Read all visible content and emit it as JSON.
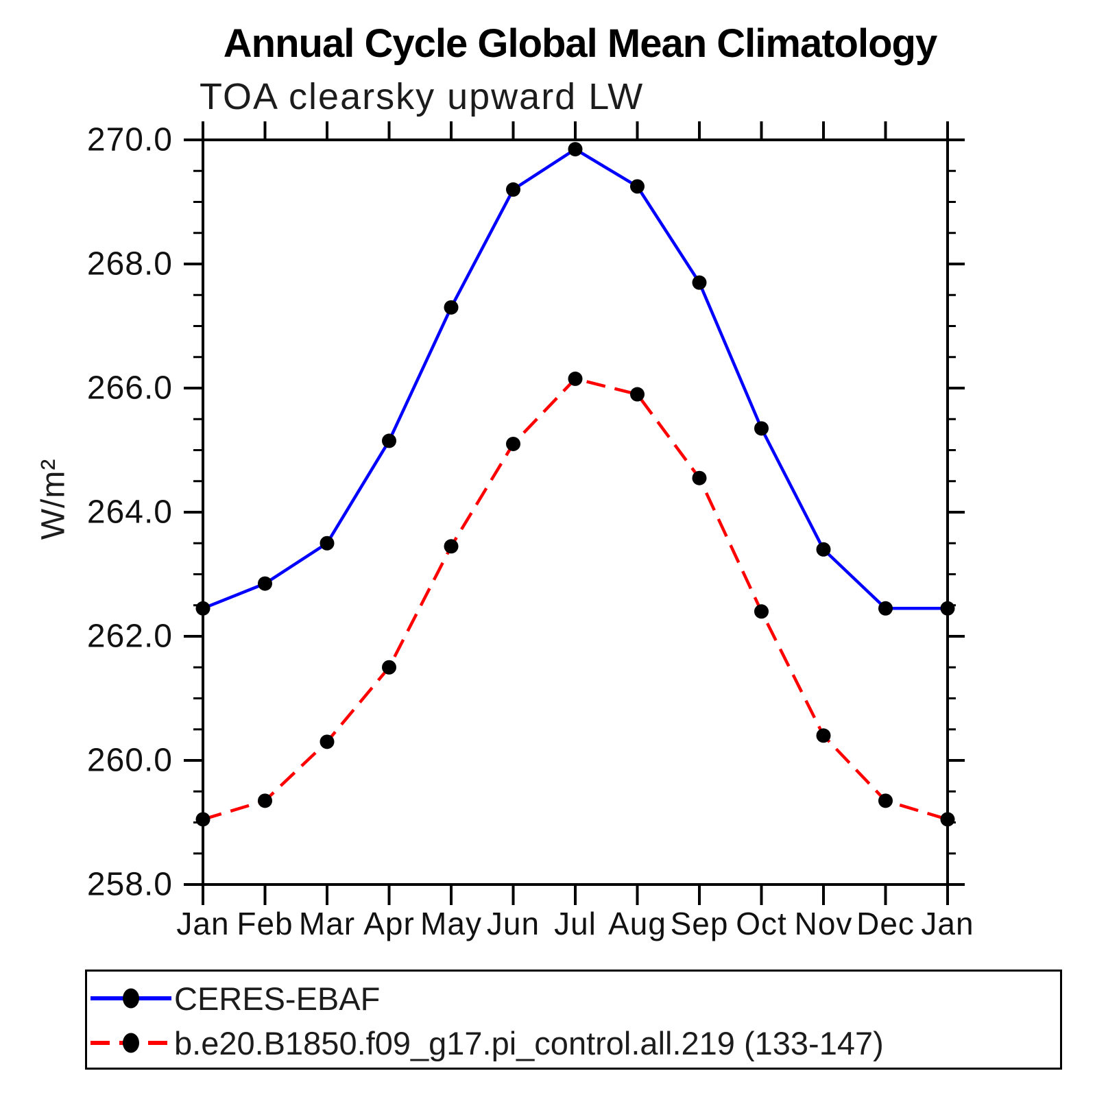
{
  "title": "Annual Cycle Global Mean Climatology",
  "chart_data": {
    "type": "line",
    "title": "Annual Cycle Global Mean Climatology",
    "subtitle": "TOA clearsky upward LW",
    "ylabel": "W/m²",
    "xlabel": "",
    "categories": [
      "Jan",
      "Feb",
      "Mar",
      "Apr",
      "May",
      "Jun",
      "Jul",
      "Aug",
      "Sep",
      "Oct",
      "Nov",
      "Dec",
      "Jan"
    ],
    "ylim": [
      258.0,
      270.0
    ],
    "ytick_major_step": 2.0,
    "ytick_minor_step": 0.5,
    "ytick_labels": [
      "258.0",
      "260.0",
      "262.0",
      "264.0",
      "266.0",
      "268.0",
      "270.0"
    ],
    "grid": false,
    "legend_position": "bottom-left-box",
    "series": [
      {
        "name": "CERES-EBAF",
        "line_style": "solid",
        "line_color": "#0000ff",
        "marker": "circle",
        "marker_color": "#000000",
        "values": [
          262.45,
          262.85,
          263.5,
          265.15,
          267.3,
          269.2,
          269.85,
          269.25,
          267.7,
          265.35,
          263.4,
          262.45,
          262.45
        ]
      },
      {
        "name": "b.e20.B1850.f09_g17.pi_control.all.219 (133-147)",
        "line_style": "dashed",
        "line_color": "#ff0000",
        "marker": "circle",
        "marker_color": "#000000",
        "values": [
          259.05,
          259.35,
          260.3,
          261.5,
          263.45,
          265.1,
          266.15,
          265.9,
          264.55,
          262.4,
          260.4,
          259.35,
          259.05
        ]
      }
    ]
  },
  "colors": {
    "axis": "#000000",
    "background": "#ffffff",
    "title_text": "#000000",
    "subtitle_text": "#1c1c1c"
  }
}
